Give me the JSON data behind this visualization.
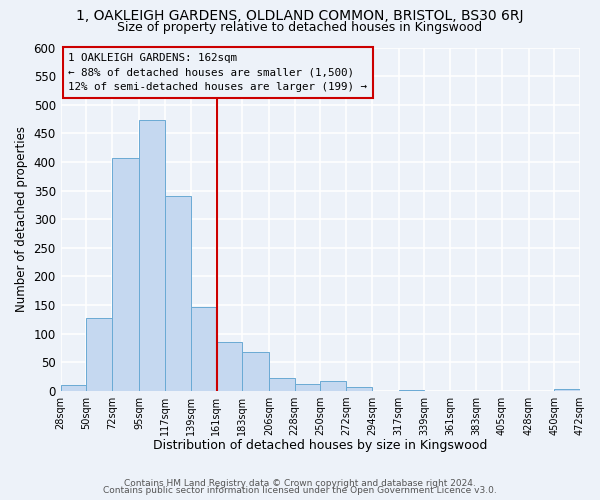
{
  "title_line1": "1, OAKLEIGH GARDENS, OLDLAND COMMON, BRISTOL, BS30 6RJ",
  "title_line2": "Size of property relative to detached houses in Kingswood",
  "xlabel": "Distribution of detached houses by size in Kingswood",
  "ylabel": "Number of detached properties",
  "bar_color": "#c5d8f0",
  "bar_edge_color": "#6aaad4",
  "bin_edges": [
    28,
    50,
    72,
    95,
    117,
    139,
    161,
    183,
    206,
    228,
    250,
    272,
    294,
    317,
    339,
    361,
    383,
    405,
    428,
    450,
    472
  ],
  "bar_heights": [
    10,
    127,
    407,
    473,
    340,
    147,
    86,
    68,
    22,
    13,
    18,
    7,
    0,
    1,
    0,
    0,
    0,
    0,
    0,
    3
  ],
  "tick_labels": [
    "28sqm",
    "50sqm",
    "72sqm",
    "95sqm",
    "117sqm",
    "139sqm",
    "161sqm",
    "183sqm",
    "206sqm",
    "228sqm",
    "250sqm",
    "272sqm",
    "294sqm",
    "317sqm",
    "339sqm",
    "361sqm",
    "383sqm",
    "405sqm",
    "428sqm",
    "450sqm",
    "472sqm"
  ],
  "vline_x": 162,
  "vline_color": "#cc0000",
  "annotation_title": "1 OAKLEIGH GARDENS: 162sqm",
  "annotation_line2": "← 88% of detached houses are smaller (1,500)",
  "annotation_line3": "12% of semi-detached houses are larger (199) →",
  "annotation_box_color": "#cc0000",
  "ylim": [
    0,
    600
  ],
  "yticks": [
    0,
    50,
    100,
    150,
    200,
    250,
    300,
    350,
    400,
    450,
    500,
    550,
    600
  ],
  "footer_line1": "Contains HM Land Registry data © Crown copyright and database right 2024.",
  "footer_line2": "Contains public sector information licensed under the Open Government Licence v3.0.",
  "bg_color": "#edf2f9"
}
